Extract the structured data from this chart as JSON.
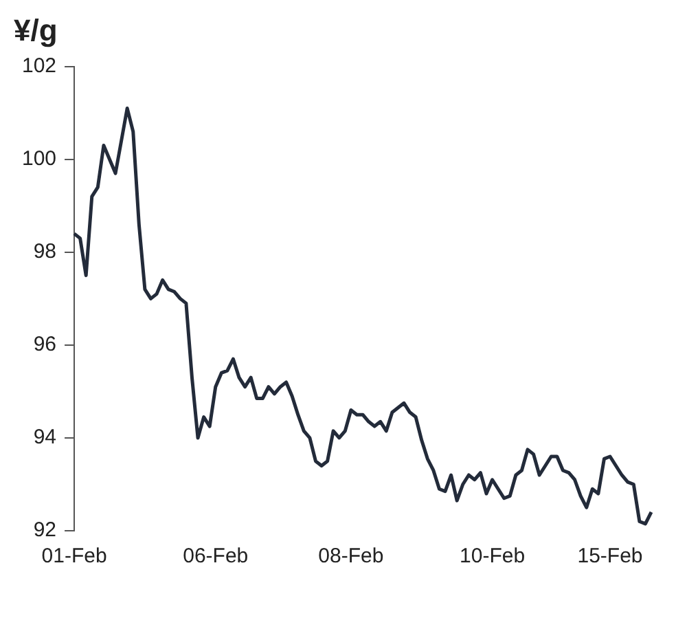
{
  "chart_data": {
    "type": "line",
    "ylabel": "¥/g",
    "categories": [
      "01-Feb",
      null,
      null,
      null,
      null,
      null,
      null,
      null,
      null,
      null,
      null,
      null,
      null,
      null,
      null,
      null,
      null,
      null,
      null,
      null,
      null,
      null,
      null,
      null,
      "06-Feb",
      null,
      null,
      null,
      null,
      null,
      null,
      null,
      null,
      null,
      null,
      null,
      null,
      null,
      null,
      null,
      null,
      null,
      null,
      null,
      null,
      null,
      null,
      "08-Feb",
      null,
      null,
      null,
      null,
      null,
      null,
      null,
      null,
      null,
      null,
      null,
      null,
      null,
      null,
      null,
      null,
      null,
      null,
      null,
      null,
      null,
      null,
      null,
      "10-Feb",
      null,
      null,
      null,
      null,
      null,
      null,
      null,
      null,
      null,
      null,
      null,
      null,
      null,
      null,
      null,
      null,
      null,
      null,
      null,
      "15-Feb",
      null,
      null,
      null,
      null,
      null,
      null,
      null
    ],
    "series": [
      {
        "color": "#232b3a",
        "values": [
          98.4,
          98.3,
          97.5,
          99.2,
          99.4,
          100.3,
          100.0,
          99.7,
          100.4,
          101.1,
          100.6,
          98.6,
          97.2,
          97.0,
          97.1,
          97.4,
          97.2,
          97.15,
          97.0,
          96.9,
          95.3,
          94.0,
          94.45,
          94.25,
          95.1,
          95.4,
          95.45,
          95.7,
          95.3,
          95.1,
          95.3,
          94.85,
          94.85,
          95.1,
          94.95,
          95.1,
          95.2,
          94.9,
          94.5,
          94.15,
          94.0,
          93.5,
          93.4,
          93.5,
          94.15,
          94.0,
          94.15,
          94.6,
          94.5,
          94.5,
          94.35,
          94.25,
          94.35,
          94.15,
          94.55,
          94.65,
          94.75,
          94.55,
          94.45,
          93.95,
          93.55,
          93.3,
          92.9,
          92.85,
          93.2,
          92.65,
          93.0,
          93.2,
          93.1,
          93.25,
          92.8,
          93.1,
          92.9,
          92.7,
          92.75,
          93.2,
          93.3,
          93.75,
          93.65,
          93.2,
          93.4,
          93.6,
          93.6,
          93.3,
          93.25,
          93.1,
          92.75,
          92.5,
          92.9,
          92.8,
          93.55,
          93.6,
          93.4,
          93.2,
          93.05,
          93.0,
          92.2,
          92.15,
          92.4
        ]
      }
    ],
    "ylim": [
      92,
      102
    ],
    "yticks": [
      92,
      94,
      96,
      98,
      100,
      102
    ],
    "grid": false,
    "legend": false,
    "marker": "none",
    "line_style": "solid"
  }
}
